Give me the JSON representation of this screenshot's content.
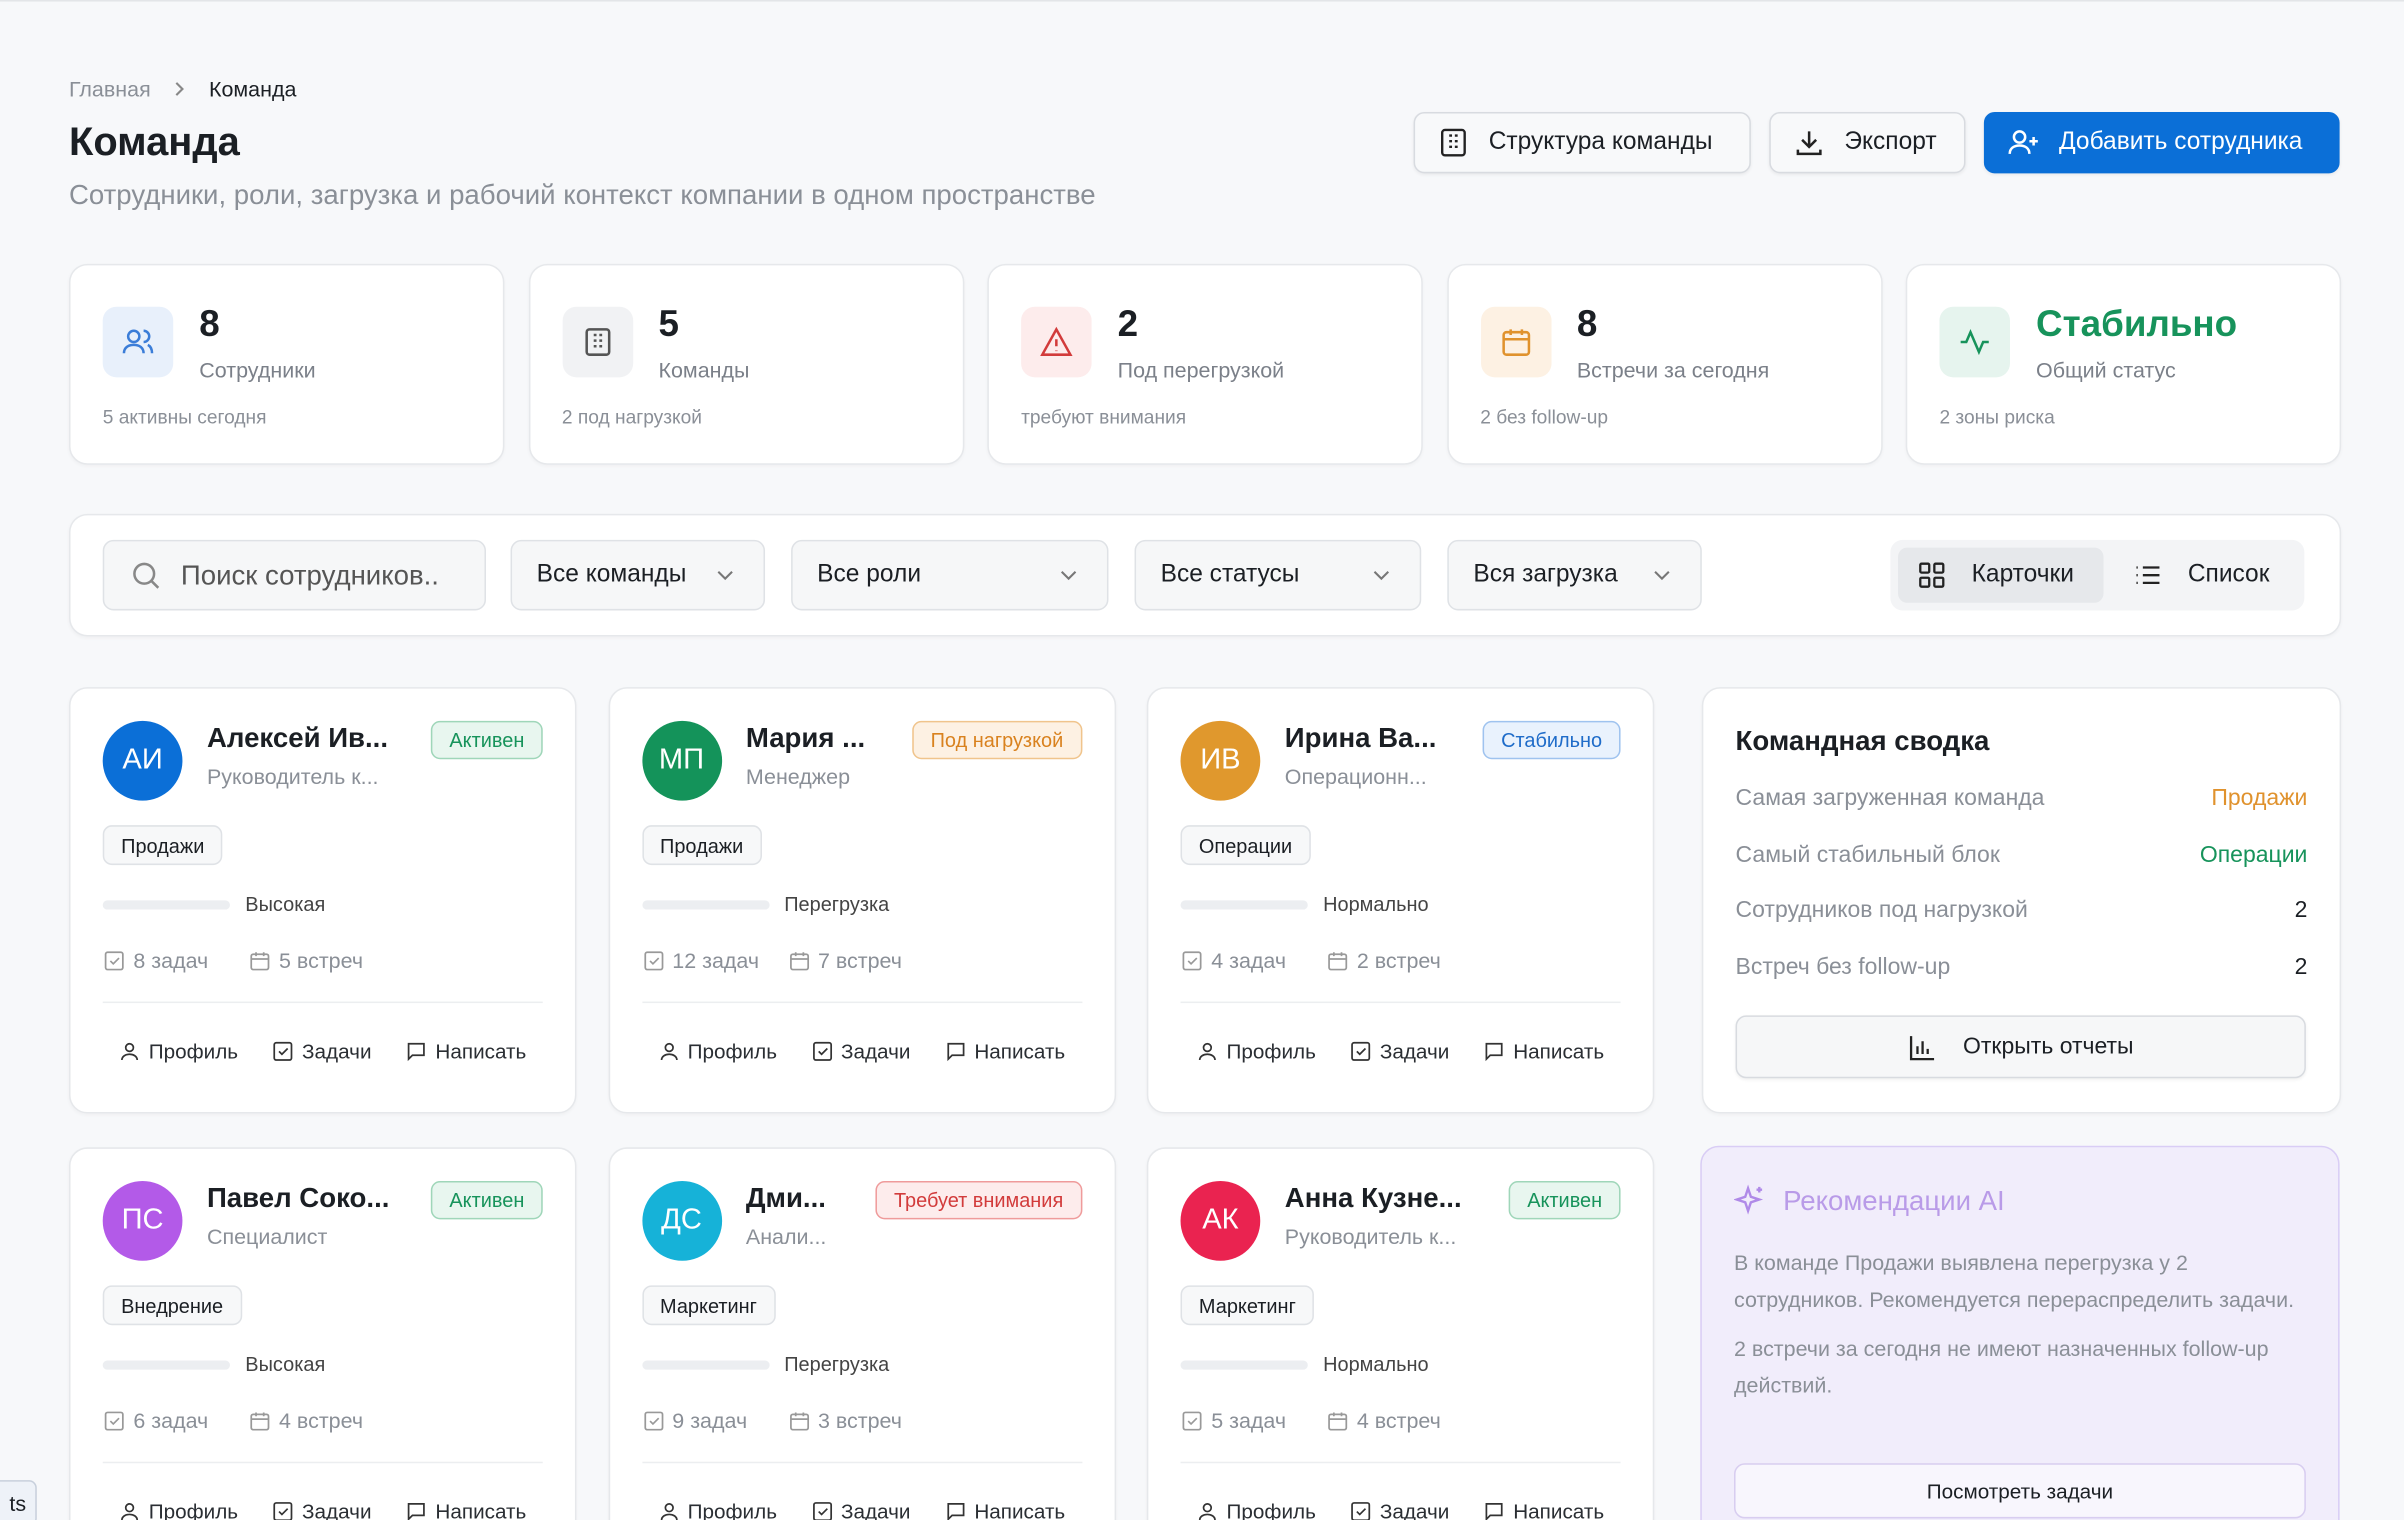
{
  "breadcrumb": [
    "Главная",
    "Команда"
  ],
  "header": {
    "title": "Команда",
    "subtitle": "Сотрудники, роли, загрузка и рабочий контекст компании в одном пространстве"
  },
  "actions": [
    "Структура команды",
    "Экспорт",
    "Добавить сотрудника"
  ],
  "stats": [
    {
      "value": 8,
      "label": "Сотрудники",
      "note": "5 активны сегодня"
    },
    {
      "value": 5,
      "label": "Команды",
      "note": "2 под нагрузкой"
    },
    {
      "value": 2,
      "label": "Под перегрузкой",
      "note": "требуют внимания"
    },
    {
      "value": 8,
      "label": "Встречи за сегодня",
      "note": "2 без follow-up"
    },
    {
      "value": "Стабильно",
      "label": "Общий статус",
      "note": "2 зоны риска"
    }
  ],
  "filters": {
    "search": "Поиск сотрудников..",
    "dropdowns": [
      "Все команды",
      "Все роли",
      "Все статусы",
      "Вся загрузка"
    ],
    "views": [
      "Карточки",
      "Список"
    ]
  },
  "card_actions": [
    "Профиль",
    "Задачи",
    "Написать"
  ],
  "employees": [
    {
      "initials": "АИ",
      "name": "Алексей Ив...",
      "role": "Руководитель к...",
      "status": "Активен",
      "team": "Продажи",
      "load": "Высокая",
      "tasks": "8 задач",
      "meetings": "5 встреч"
    },
    {
      "initials": "МП",
      "name": "Мария ...",
      "role": "Менеджер",
      "status": "Под нагрузкой",
      "team": "Продажи",
      "load": "Перегрузка",
      "tasks": "12 задач",
      "meetings": "7 встреч"
    },
    {
      "initials": "ИВ",
      "name": "Ирина Ва...",
      "role": "Операционн...",
      "status": "Стабильно",
      "team": "Операции",
      "load": "Нормально",
      "tasks": "4 задач",
      "meetings": "2 встреч"
    },
    {
      "initials": "ПС",
      "name": "Павел Соко...",
      "role": "Специалист",
      "status": "Активен",
      "team": "Внедрение",
      "load": "Высокая",
      "tasks": "6 задач",
      "meetings": "4 встреч"
    },
    {
      "initials": "ДС",
      "name": "Дми...",
      "role": "Анали...",
      "status": "Требует внимания",
      "team": "Маркетинг",
      "load": "Перегрузка",
      "tasks": "9 задач",
      "meetings": "3 встреч"
    },
    {
      "initials": "АК",
      "name": "Анна Кузне...",
      "role": "Руководитель к...",
      "status": "Активен",
      "team": "Маркетинг",
      "load": "Нормально",
      "tasks": "5 задач",
      "meetings": "4 встреч"
    }
  ],
  "summary": {
    "title": "Командная сводка",
    "rows": [
      {
        "label": "Самая загруженная команда",
        "value": "Продажи"
      },
      {
        "label": "Самый стабильный блок",
        "value": "Операции"
      },
      {
        "label": "Сотрудников под нагрузкой",
        "value": 2
      },
      {
        "label": "Встреч без follow-up",
        "value": 2
      }
    ],
    "button": "Открыть отчеты"
  },
  "ai": {
    "title": "Рекомендации AI",
    "paragraphs": [
      "В команде Продажи выявлена перегрузка у 2 сотрудников. Рекомендуется перераспределить задачи.",
      "2 встречи за сегодня не имеют назначенных follow-up действий."
    ],
    "button": "Посмотреть задачи"
  },
  "corner_tag": "ts"
}
